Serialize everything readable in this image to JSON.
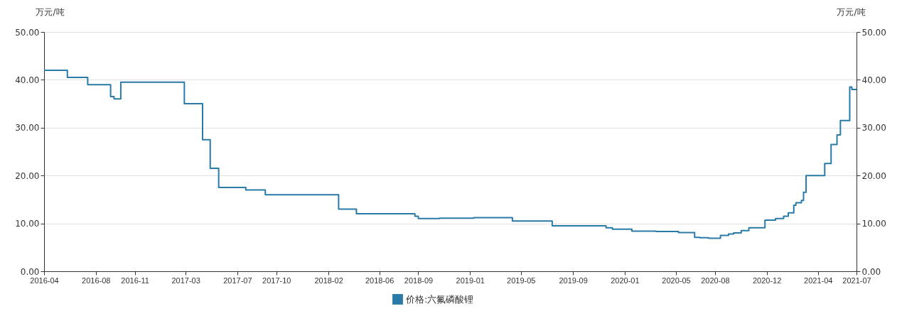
{
  "chart_data": {
    "type": "step",
    "x": [
      "2016-04-01",
      "2016-05-26",
      "2016-07-13",
      "2016-09-05",
      "2016-09-13",
      "2016-09-29",
      "2017-02-26",
      "2017-04-10",
      "2017-04-28",
      "2017-05-18",
      "2017-07-21",
      "2017-09-05",
      "2018-02-25",
      "2018-04-08",
      "2018-08-24",
      "2018-09-01",
      "2018-10-21",
      "2019-01-10",
      "2019-04-11",
      "2019-07-14",
      "2019-11-18",
      "2019-12-03",
      "2020-01-18",
      "2020-03-15",
      "2020-05-07",
      "2020-06-14",
      "2020-06-26",
      "2020-07-17",
      "2020-08-14",
      "2020-09-02",
      "2020-09-14",
      "2020-10-02",
      "2020-10-20",
      "2020-11-27",
      "2020-12-22",
      "2021-01-10",
      "2021-01-21",
      "2021-02-03",
      "2021-02-08",
      "2021-02-21",
      "2021-02-26",
      "2021-03-04",
      "2021-04-17",
      "2021-05-02",
      "2021-05-16",
      "2021-05-24",
      "2021-06-15",
      "2021-06-20",
      "2021-07-01"
    ],
    "series": [
      {
        "name": "价格:六氟磷酸锂",
        "color": "#2a7aa8",
        "values": [
          42.0,
          40.5,
          39.0,
          36.5,
          36.0,
          39.5,
          35.0,
          27.5,
          21.5,
          17.5,
          17.0,
          16.0,
          13.0,
          12.0,
          11.5,
          11.0,
          11.1,
          11.2,
          10.5,
          9.5,
          9.1,
          8.8,
          8.4,
          8.3,
          8.1,
          7.1,
          7.0,
          6.9,
          7.5,
          7.8,
          8.0,
          8.5,
          9.1,
          10.7,
          11.0,
          11.5,
          12.2,
          13.8,
          14.3,
          14.8,
          16.5,
          20.0,
          22.5,
          26.5,
          28.5,
          31.5,
          38.5,
          38.0,
          38.0
        ]
      }
    ],
    "xlim": [
      "2016-04-01",
      "2021-07-01"
    ],
    "xticks": [
      "2016-04",
      "2016-08",
      "2016-11",
      "2017-03",
      "2017-07",
      "2017-10",
      "2018-02",
      "2018-06",
      "2018-09",
      "2019-01",
      "2019-05",
      "2019-09",
      "2020-01",
      "2020-05",
      "2020-08",
      "2020-12",
      "2021-04",
      "2021-07"
    ],
    "ylim": [
      0,
      50
    ],
    "yticks": [
      {
        "value": 0,
        "label": "0.00"
      },
      {
        "value": 10,
        "label": "10.00"
      },
      {
        "value": 20,
        "label": "20.00"
      },
      {
        "value": 30,
        "label": "30.00"
      },
      {
        "value": 40,
        "label": "40.00"
      },
      {
        "value": 50,
        "label": "50.00"
      }
    ],
    "ylabel": "万元/吨",
    "y2lim": [
      0,
      50
    ],
    "y2ticks": [
      {
        "value": 0,
        "label": "0.00"
      },
      {
        "value": 10,
        "label": "10.00"
      },
      {
        "value": 20,
        "label": "20.00"
      },
      {
        "value": 30,
        "label": "30.00"
      },
      {
        "value": 40,
        "label": "40.00"
      },
      {
        "value": 50,
        "label": "50.00"
      }
    ],
    "y2label": "万元/吨",
    "grid": "y",
    "legend": "bottom",
    "line_style": "solid",
    "marker": "none"
  }
}
